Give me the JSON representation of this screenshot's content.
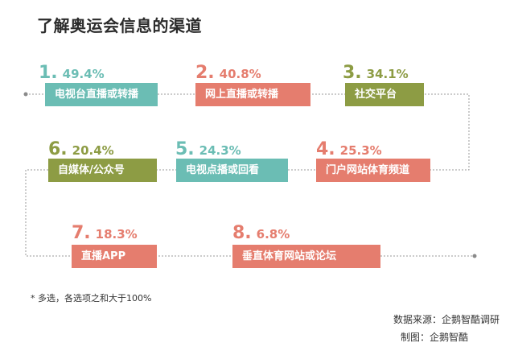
{
  "title": "了解奥运会信息的渠道",
  "note": "*   多选，各选项之和大于100%",
  "source": "数据来源：企鹅智酷调研",
  "made_by": "制图：企鹅智酷",
  "colors": {
    "teal": "#6bbdb4",
    "salmon": "#e57d6e",
    "olive": "#8d9c44",
    "line": "#9a9a9a"
  },
  "chart_data": {
    "type": "bar",
    "unit": "%",
    "categories": [
      "电视台直播或转播",
      "网上直播或转播",
      "社交平台",
      "门户网站体育频道",
      "电视点播或回看",
      "自媒体/公众号",
      "直播APP",
      "垂直体育网站或论坛"
    ],
    "ranks": [
      "1.",
      "2.",
      "3.",
      "4.",
      "5.",
      "6.",
      "7.",
      "8."
    ],
    "values": [
      49.4,
      40.8,
      34.1,
      25.3,
      24.3,
      20.4,
      18.3,
      6.8
    ],
    "value_labels": [
      "49.4%",
      "40.8%",
      "34.1%",
      "25.3%",
      "24.3%",
      "20.4%",
      "18.3%",
      "6.8%"
    ],
    "box_colors": [
      "#6bbdb4",
      "#e57d6e",
      "#8d9c44",
      "#e57d6e",
      "#6bbdb4",
      "#8d9c44",
      "#e57d6e",
      "#e57d6e"
    ]
  }
}
